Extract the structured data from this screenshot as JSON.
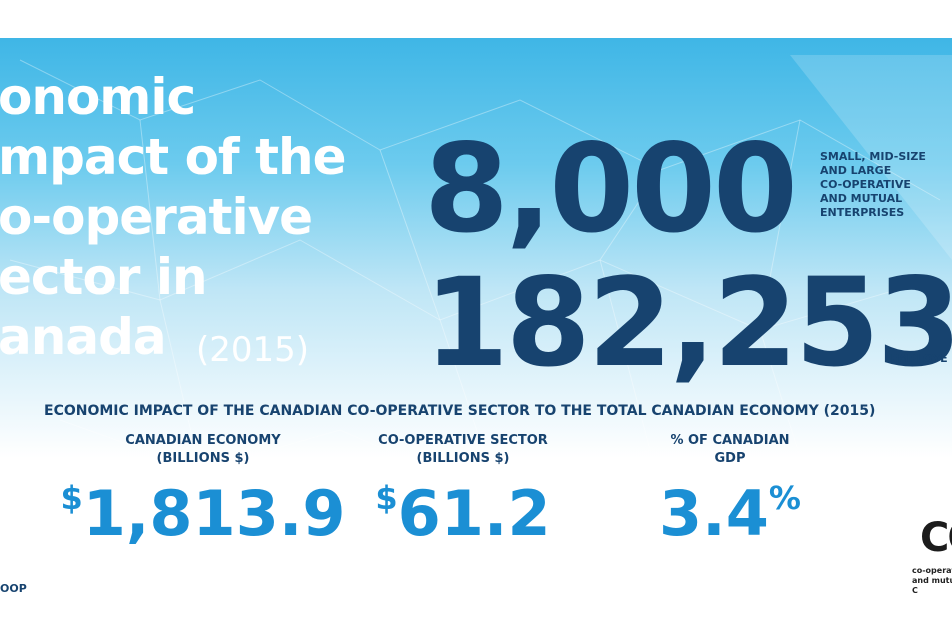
{
  "header": {
    "title_lines": [
      "onomic",
      "mpact of the",
      "o-operative",
      "ector in",
      "anada"
    ],
    "year": "(2015)"
  },
  "highlights": [
    {
      "number": "8,000",
      "label_lines": [
        "SMALL, MID-SIZE",
        "AND LARGE",
        "CO-OPERATIVE",
        "AND MUTUAL",
        "ENTERPRISES"
      ]
    },
    {
      "number": "182,253",
      "label_lines": [
        "EMPLOYE"
      ]
    }
  ],
  "impact": {
    "title": "ECONOMIC IMPACT OF THE CANADIAN CO-OPERATIVE SECTOR TO THE TOTAL CANADIAN ECONOMY (2015)",
    "columns": [
      {
        "label_lines": [
          "CANADIAN ECONOMY",
          "(BILLIONS $)"
        ],
        "prefix": "$",
        "value": "1,813.9",
        "suffix": ""
      },
      {
        "label_lines": [
          "CO-OPERATIVE SECTOR",
          "(BILLIONS $)"
        ],
        "prefix": "$",
        "value": "61.2",
        "suffix": ""
      },
      {
        "label_lines": [
          "% OF CANADIAN",
          "GDP"
        ],
        "prefix": "",
        "value": "3.4",
        "suffix": "%"
      }
    ]
  },
  "footer": {
    "left": "OOP",
    "logo": "CO",
    "logo_lines": [
      "co-operati",
      "and mutual",
      "C"
    ]
  }
}
